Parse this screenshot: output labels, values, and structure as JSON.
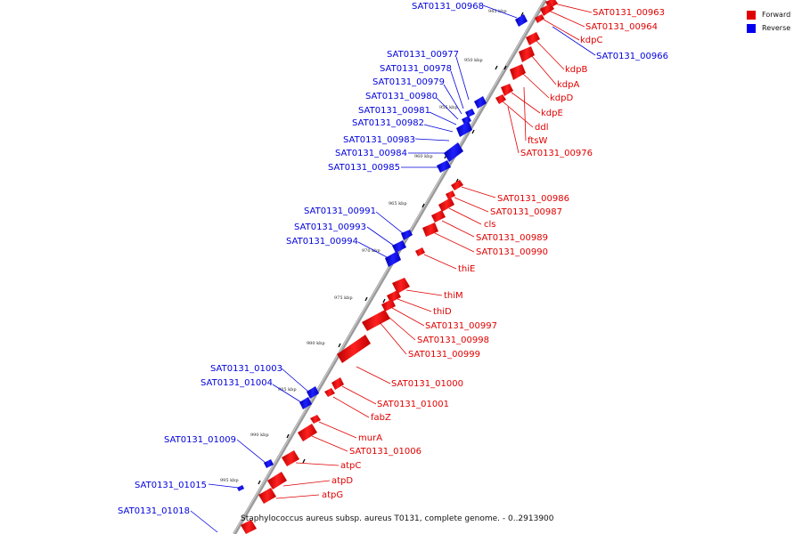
{
  "legend": {
    "forward_label": "Forward",
    "reverse_label": "Reverse",
    "forward_color": "#e00000",
    "reverse_color": "#0000ee"
  },
  "caption": "Staphylococcus aureus subsp. aureus T0131, complete genome. - 0..2913900",
  "ticks": [
    "945 kbp",
    "950 kbp",
    "955 kbp",
    "960 kbp",
    "965 kbp",
    "970 kbp",
    "975 kbp",
    "980 kbp",
    "985 kbp",
    "990 kbp",
    "995 kbp"
  ],
  "forward_genes": [
    "SAT0131_00963",
    "SAT0131_00964",
    "kdpC",
    "kdpB",
    "kdpA",
    "kdpD",
    "kdpE",
    "ddl",
    "ftsW",
    "SAT0131_00976",
    "SAT0131_00986",
    "SAT0131_00987",
    "cls",
    "SAT0131_00989",
    "SAT0131_00990",
    "thiE",
    "thiM",
    "thiD",
    "SAT0131_00997",
    "SAT0131_00998",
    "SAT0131_00999",
    "SAT0131_01000",
    "SAT0131_01001",
    "fabZ",
    "murA",
    "SAT0131_01006",
    "atpC",
    "atpD",
    "atpG"
  ],
  "reverse_genes": [
    "SAT0131_00968",
    "SAT0131_00966",
    "SAT0131_00977",
    "SAT0131_00978",
    "SAT0131_00979",
    "SAT0131_00980",
    "SAT0131_00981",
    "SAT0131_00982",
    "SAT0131_00983",
    "SAT0131_00984",
    "SAT0131_00985",
    "SAT0131_00991",
    "SAT0131_00993",
    "SAT0131_00994",
    "SAT0131_01003",
    "SAT0131_01004",
    "SAT0131_01009",
    "SAT0131_01015",
    "SAT0131_01018"
  ]
}
